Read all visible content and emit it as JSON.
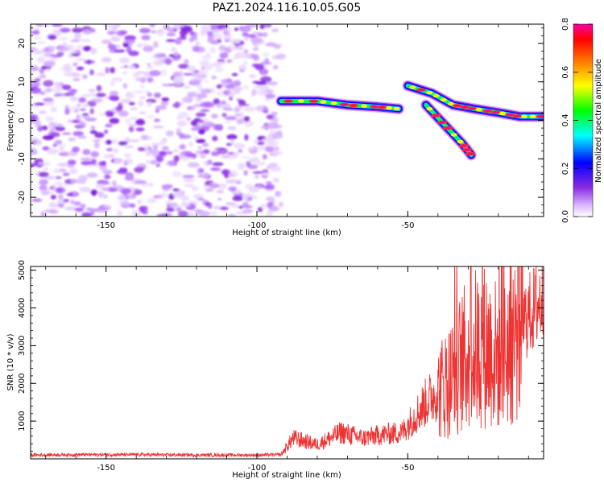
{
  "title": "PAZ1.2024.116.10.05.G05",
  "chart_data": [
    {
      "type": "heatmap",
      "xlabel": "Height of straight line (km)",
      "ylabel": "Frequency (Hz)",
      "xlim": [
        -175,
        -5
      ],
      "ylim": [
        -25,
        25
      ],
      "x_ticks": [
        -150,
        -100,
        -50
      ],
      "y_ticks": [
        -20,
        -10,
        0,
        10,
        20
      ],
      "noise_region_x": [
        -175,
        -92
      ],
      "ridges": [
        {
          "x": [
            -92,
            -80,
            -70,
            -60,
            -53
          ],
          "y": [
            5,
            5,
            4,
            3.5,
            3
          ]
        },
        {
          "x": [
            -50,
            -42,
            -35,
            -28,
            -20,
            -13,
            -5
          ],
          "y": [
            9,
            7,
            4,
            3,
            2,
            1,
            1
          ]
        },
        {
          "x": [
            -44,
            -38,
            -32,
            -29
          ],
          "y": [
            4,
            -1,
            -6,
            -9
          ]
        }
      ],
      "colorbar": {
        "label": "Normalized spectral amplitude",
        "range": [
          0.0,
          0.8
        ],
        "ticks": [
          0.0,
          0.2,
          0.4,
          0.6,
          0.8
        ],
        "colormap": [
          "#ffffff",
          "#d9b6ff",
          "#8a2be2",
          "#0000ff",
          "#00ffff",
          "#00ff00",
          "#ffff00",
          "#ff8000",
          "#ff0000",
          "#ff00a0"
        ]
      }
    },
    {
      "type": "line",
      "xlabel": "Height of straight line (km)",
      "ylabel": "SNR (10 * v/v)",
      "xlim": [
        -175,
        -5
      ],
      "ylim": [
        0,
        5100
      ],
      "x_ticks": [
        -150,
        -100,
        -50
      ],
      "y_ticks": [
        1000,
        2000,
        3000,
        4000,
        5000
      ],
      "color": "#ee3333",
      "series": [
        {
          "x": [
            -175,
            -160,
            -140,
            -120,
            -100,
            -92,
            -88,
            -80,
            -72,
            -65,
            -58,
            -52,
            -48,
            -44,
            -40,
            -36,
            -32,
            -28,
            -24,
            -20,
            -16,
            -12,
            -8,
            -5
          ],
          "y": [
            100,
            110,
            110,
            100,
            100,
            110,
            550,
            380,
            700,
            550,
            650,
            700,
            1100,
            1500,
            1800,
            2100,
            2600,
            2900,
            3000,
            2700,
            3100,
            3600,
            4000,
            4300
          ]
        }
      ]
    }
  ]
}
